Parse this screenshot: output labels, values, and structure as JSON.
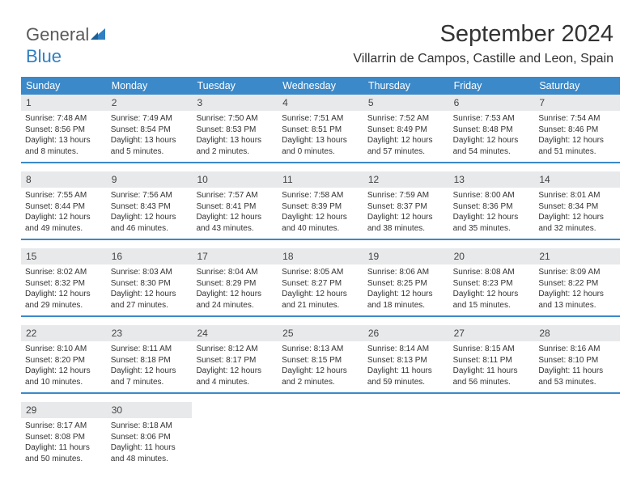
{
  "logo": {
    "text1": "General",
    "text2": "Blue"
  },
  "title": "September 2024",
  "subtitle": "Villarrin de Campos, Castille and Leon, Spain",
  "colors": {
    "header_bg": "#3b89c9",
    "header_text": "#ffffff",
    "daynum_bg": "#e8e9ea",
    "body_text": "#333333",
    "logo_gray": "#5a5a5a",
    "logo_blue": "#2f7fc2",
    "rule": "#3b89c9"
  },
  "day_names": [
    "Sunday",
    "Monday",
    "Tuesday",
    "Wednesday",
    "Thursday",
    "Friday",
    "Saturday"
  ],
  "weeks": [
    [
      {
        "n": "1",
        "rise": "7:48 AM",
        "set": "8:56 PM",
        "dl": "13 hours and 8 minutes."
      },
      {
        "n": "2",
        "rise": "7:49 AM",
        "set": "8:54 PM",
        "dl": "13 hours and 5 minutes."
      },
      {
        "n": "3",
        "rise": "7:50 AM",
        "set": "8:53 PM",
        "dl": "13 hours and 2 minutes."
      },
      {
        "n": "4",
        "rise": "7:51 AM",
        "set": "8:51 PM",
        "dl": "13 hours and 0 minutes."
      },
      {
        "n": "5",
        "rise": "7:52 AM",
        "set": "8:49 PM",
        "dl": "12 hours and 57 minutes."
      },
      {
        "n": "6",
        "rise": "7:53 AM",
        "set": "8:48 PM",
        "dl": "12 hours and 54 minutes."
      },
      {
        "n": "7",
        "rise": "7:54 AM",
        "set": "8:46 PM",
        "dl": "12 hours and 51 minutes."
      }
    ],
    [
      {
        "n": "8",
        "rise": "7:55 AM",
        "set": "8:44 PM",
        "dl": "12 hours and 49 minutes."
      },
      {
        "n": "9",
        "rise": "7:56 AM",
        "set": "8:43 PM",
        "dl": "12 hours and 46 minutes."
      },
      {
        "n": "10",
        "rise": "7:57 AM",
        "set": "8:41 PM",
        "dl": "12 hours and 43 minutes."
      },
      {
        "n": "11",
        "rise": "7:58 AM",
        "set": "8:39 PM",
        "dl": "12 hours and 40 minutes."
      },
      {
        "n": "12",
        "rise": "7:59 AM",
        "set": "8:37 PM",
        "dl": "12 hours and 38 minutes."
      },
      {
        "n": "13",
        "rise": "8:00 AM",
        "set": "8:36 PM",
        "dl": "12 hours and 35 minutes."
      },
      {
        "n": "14",
        "rise": "8:01 AM",
        "set": "8:34 PM",
        "dl": "12 hours and 32 minutes."
      }
    ],
    [
      {
        "n": "15",
        "rise": "8:02 AM",
        "set": "8:32 PM",
        "dl": "12 hours and 29 minutes."
      },
      {
        "n": "16",
        "rise": "8:03 AM",
        "set": "8:30 PM",
        "dl": "12 hours and 27 minutes."
      },
      {
        "n": "17",
        "rise": "8:04 AM",
        "set": "8:29 PM",
        "dl": "12 hours and 24 minutes."
      },
      {
        "n": "18",
        "rise": "8:05 AM",
        "set": "8:27 PM",
        "dl": "12 hours and 21 minutes."
      },
      {
        "n": "19",
        "rise": "8:06 AM",
        "set": "8:25 PM",
        "dl": "12 hours and 18 minutes."
      },
      {
        "n": "20",
        "rise": "8:08 AM",
        "set": "8:23 PM",
        "dl": "12 hours and 15 minutes."
      },
      {
        "n": "21",
        "rise": "8:09 AM",
        "set": "8:22 PM",
        "dl": "12 hours and 13 minutes."
      }
    ],
    [
      {
        "n": "22",
        "rise": "8:10 AM",
        "set": "8:20 PM",
        "dl": "12 hours and 10 minutes."
      },
      {
        "n": "23",
        "rise": "8:11 AM",
        "set": "8:18 PM",
        "dl": "12 hours and 7 minutes."
      },
      {
        "n": "24",
        "rise": "8:12 AM",
        "set": "8:17 PM",
        "dl": "12 hours and 4 minutes."
      },
      {
        "n": "25",
        "rise": "8:13 AM",
        "set": "8:15 PM",
        "dl": "12 hours and 2 minutes."
      },
      {
        "n": "26",
        "rise": "8:14 AM",
        "set": "8:13 PM",
        "dl": "11 hours and 59 minutes."
      },
      {
        "n": "27",
        "rise": "8:15 AM",
        "set": "8:11 PM",
        "dl": "11 hours and 56 minutes."
      },
      {
        "n": "28",
        "rise": "8:16 AM",
        "set": "8:10 PM",
        "dl": "11 hours and 53 minutes."
      }
    ],
    [
      {
        "n": "29",
        "rise": "8:17 AM",
        "set": "8:08 PM",
        "dl": "11 hours and 50 minutes."
      },
      {
        "n": "30",
        "rise": "8:18 AM",
        "set": "8:06 PM",
        "dl": "11 hours and 48 minutes."
      },
      null,
      null,
      null,
      null,
      null
    ]
  ],
  "labels": {
    "sunrise": "Sunrise: ",
    "sunset": "Sunset: ",
    "daylight": "Daylight: "
  }
}
